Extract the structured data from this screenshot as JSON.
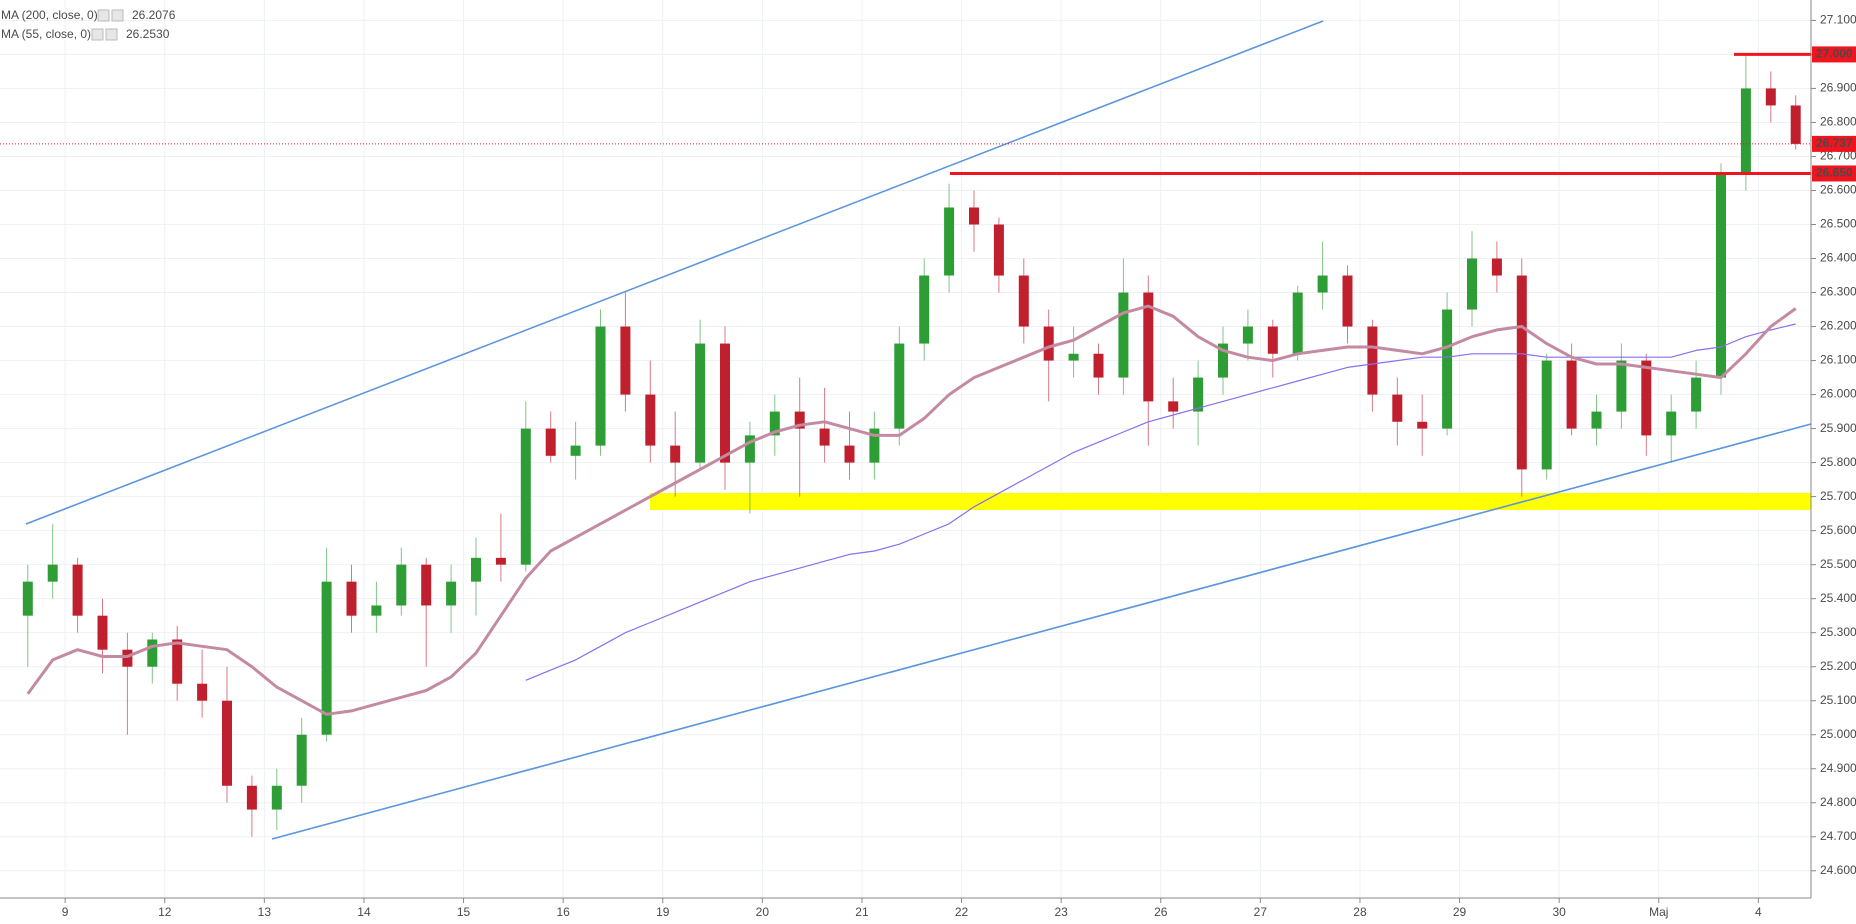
{
  "chart_data": {
    "type": "candlestick",
    "categories": [
      null,
      null,
      "9",
      null,
      null,
      null,
      "12",
      null,
      null,
      null,
      "13",
      null,
      null,
      null,
      "14",
      null,
      null,
      null,
      "15",
      null,
      null,
      null,
      "16",
      null,
      null,
      null,
      "19",
      null,
      null,
      null,
      "20",
      null,
      null,
      null,
      "21",
      null,
      null,
      null,
      "22",
      null,
      null,
      null,
      "23",
      null,
      null,
      null,
      "26",
      null,
      null,
      null,
      "27",
      null,
      null,
      null,
      "28",
      null,
      null,
      null,
      "29",
      null,
      null,
      null,
      "30",
      null,
      null,
      null,
      "Maj",
      null,
      null,
      null,
      "4",
      null
    ],
    "ohlc": [
      [
        25.35,
        25.5,
        25.2,
        25.45
      ],
      [
        25.45,
        25.62,
        25.4,
        25.5
      ],
      [
        25.5,
        25.52,
        25.3,
        25.35
      ],
      [
        25.35,
        25.4,
        25.18,
        25.25
      ],
      [
        25.25,
        25.3,
        25.0,
        25.2
      ],
      [
        25.2,
        25.3,
        25.15,
        25.28
      ],
      [
        25.28,
        25.32,
        25.1,
        25.15
      ],
      [
        25.15,
        25.25,
        25.05,
        25.1
      ],
      [
        25.1,
        25.2,
        24.8,
        24.85
      ],
      [
        24.85,
        24.88,
        24.7,
        24.78
      ],
      [
        24.78,
        24.9,
        24.72,
        24.85
      ],
      [
        24.85,
        25.05,
        24.8,
        25.0
      ],
      [
        25.0,
        25.55,
        24.98,
        25.45
      ],
      [
        25.45,
        25.5,
        25.3,
        25.35
      ],
      [
        25.35,
        25.45,
        25.3,
        25.38
      ],
      [
        25.38,
        25.55,
        25.35,
        25.5
      ],
      [
        25.5,
        25.52,
        25.2,
        25.38
      ],
      [
        25.38,
        25.5,
        25.3,
        25.45
      ],
      [
        25.45,
        25.58,
        25.35,
        25.52
      ],
      [
        25.52,
        25.65,
        25.45,
        25.5
      ],
      [
        25.5,
        25.98,
        25.48,
        25.9
      ],
      [
        25.9,
        25.95,
        25.8,
        25.82
      ],
      [
        25.82,
        25.92,
        25.75,
        25.85
      ],
      [
        25.85,
        26.25,
        25.82,
        26.2
      ],
      [
        26.2,
        26.3,
        25.95,
        26.0
      ],
      [
        26.0,
        26.1,
        25.8,
        25.85
      ],
      [
        25.85,
        25.95,
        25.7,
        25.8
      ],
      [
        25.8,
        26.22,
        25.78,
        26.15
      ],
      [
        26.15,
        26.2,
        25.72,
        25.8
      ],
      [
        25.8,
        25.92,
        25.65,
        25.88
      ],
      [
        25.88,
        26.0,
        25.82,
        25.95
      ],
      [
        25.95,
        26.05,
        25.7,
        25.9
      ],
      [
        25.9,
        26.02,
        25.8,
        25.85
      ],
      [
        25.85,
        25.95,
        25.75,
        25.8
      ],
      [
        25.8,
        25.95,
        25.75,
        25.9
      ],
      [
        25.9,
        26.2,
        25.85,
        26.15
      ],
      [
        26.15,
        26.4,
        26.1,
        26.35
      ],
      [
        26.35,
        26.62,
        26.3,
        26.55
      ],
      [
        26.55,
        26.6,
        26.42,
        26.5
      ],
      [
        26.5,
        26.52,
        26.3,
        26.35
      ],
      [
        26.35,
        26.4,
        26.15,
        26.2
      ],
      [
        26.2,
        26.25,
        25.98,
        26.1
      ],
      [
        26.1,
        26.2,
        26.05,
        26.12
      ],
      [
        26.12,
        26.15,
        26.0,
        26.05
      ],
      [
        26.05,
        26.4,
        26.0,
        26.3
      ],
      [
        26.3,
        26.35,
        25.85,
        25.98
      ],
      [
        25.98,
        26.05,
        25.9,
        25.95
      ],
      [
        25.95,
        26.1,
        25.85,
        26.05
      ],
      [
        26.05,
        26.2,
        26.0,
        26.15
      ],
      [
        26.15,
        26.25,
        26.1,
        26.2
      ],
      [
        26.2,
        26.22,
        26.05,
        26.12
      ],
      [
        26.12,
        26.32,
        26.1,
        26.3
      ],
      [
        26.3,
        26.45,
        26.25,
        26.35
      ],
      [
        26.35,
        26.38,
        26.15,
        26.2
      ],
      [
        26.2,
        26.22,
        25.95,
        26.0
      ],
      [
        26.0,
        26.05,
        25.85,
        25.92
      ],
      [
        25.92,
        26.0,
        25.82,
        25.9
      ],
      [
        25.9,
        26.3,
        25.88,
        26.25
      ],
      [
        26.25,
        26.48,
        26.2,
        26.4
      ],
      [
        26.4,
        26.45,
        26.3,
        26.35
      ],
      [
        26.35,
        26.4,
        25.7,
        25.78
      ],
      [
        25.78,
        26.12,
        25.75,
        26.1
      ],
      [
        26.1,
        26.15,
        25.88,
        25.9
      ],
      [
        25.9,
        26.0,
        25.85,
        25.95
      ],
      [
        25.95,
        26.15,
        25.9,
        26.1
      ],
      [
        26.1,
        26.12,
        25.82,
        25.88
      ],
      [
        25.88,
        26.0,
        25.8,
        25.95
      ],
      [
        25.95,
        26.1,
        25.9,
        26.05
      ],
      [
        26.05,
        26.68,
        26.0,
        26.65
      ],
      [
        26.65,
        27.0,
        26.6,
        26.9
      ],
      [
        26.9,
        26.95,
        26.8,
        26.85
      ],
      [
        26.85,
        26.88,
        26.72,
        26.737
      ]
    ],
    "up_color": "#2e9d36",
    "down_color": "#c0202e",
    "series": [
      {
        "name": "MA (200, close, 0)",
        "color": "#8a6ef0",
        "legend_value_label": "26.2076",
        "values": [
          null,
          null,
          null,
          null,
          null,
          null,
          null,
          null,
          null,
          null,
          null,
          null,
          null,
          null,
          null,
          null,
          null,
          null,
          null,
          null,
          25.16,
          25.19,
          25.22,
          25.26,
          25.3,
          25.33,
          25.36,
          25.39,
          25.42,
          25.45,
          25.47,
          25.49,
          25.51,
          25.53,
          25.54,
          25.56,
          25.59,
          25.62,
          25.67,
          25.71,
          25.75,
          25.79,
          25.83,
          25.86,
          25.89,
          25.92,
          25.94,
          25.96,
          25.98,
          26.0,
          26.02,
          26.04,
          26.06,
          26.08,
          26.09,
          26.1,
          26.11,
          26.11,
          26.12,
          26.12,
          26.12,
          26.11,
          26.11,
          26.11,
          26.11,
          26.11,
          26.11,
          26.13,
          26.14,
          26.17,
          26.19,
          26.2076
        ]
      },
      {
        "name": "MA (55, close, 0)",
        "color": "#c48aa2",
        "legend_value_label": "26.2530",
        "values": [
          25.12,
          25.22,
          25.25,
          25.23,
          25.23,
          25.26,
          25.27,
          25.26,
          25.25,
          25.2,
          25.14,
          25.1,
          25.06,
          25.07,
          25.09,
          25.11,
          25.13,
          25.17,
          25.24,
          25.35,
          25.46,
          25.54,
          25.58,
          25.62,
          25.66,
          25.7,
          25.74,
          25.78,
          25.82,
          25.86,
          25.89,
          25.91,
          25.92,
          25.9,
          25.88,
          25.88,
          25.93,
          26.0,
          26.05,
          26.08,
          26.11,
          26.14,
          26.16,
          26.2,
          26.24,
          26.26,
          26.23,
          26.17,
          26.13,
          26.11,
          26.1,
          26.12,
          26.13,
          26.14,
          26.14,
          26.13,
          26.12,
          26.14,
          26.17,
          26.19,
          26.2,
          26.15,
          26.11,
          26.09,
          26.09,
          26.08,
          26.07,
          26.06,
          26.05,
          26.12,
          26.2,
          26.253
        ]
      }
    ],
    "levels": [
      {
        "value": 27.0,
        "label": "27.000",
        "color": "#f0141e"
      },
      {
        "value": 26.65,
        "label": "26.650",
        "color": "#f0141e"
      }
    ],
    "last_price": {
      "value": 26.737,
      "label": "26.737",
      "color": "#f0141e"
    },
    "ylim": [
      24.52,
      27.16
    ],
    "yticks": [
      {
        "value": 27.1,
        "label": "27.100"
      },
      {
        "value": 27.0,
        "label": "27.000"
      },
      {
        "value": 26.9,
        "label": "26.900"
      },
      {
        "value": 26.8,
        "label": "26.800"
      },
      {
        "value": 26.7,
        "label": "26.700"
      },
      {
        "value": 26.6,
        "label": "26.600"
      },
      {
        "value": 26.5,
        "label": "26.500"
      },
      {
        "value": 26.4,
        "label": "26.400"
      },
      {
        "value": 26.3,
        "label": "26.300"
      },
      {
        "value": 26.2,
        "label": "26.200"
      },
      {
        "value": 26.1,
        "label": "26.100"
      },
      {
        "value": 26.0,
        "label": "26.000"
      },
      {
        "value": 25.9,
        "label": "25.900"
      },
      {
        "value": 25.8,
        "label": "25.800"
      },
      {
        "value": 25.7,
        "label": "25.700"
      },
      {
        "value": 25.6,
        "label": "25.600"
      },
      {
        "value": 25.5,
        "label": "25.500"
      },
      {
        "value": 25.4,
        "label": "25.400"
      },
      {
        "value": 25.3,
        "label": "25.300"
      },
      {
        "value": 25.2,
        "label": "25.200"
      },
      {
        "value": 25.1,
        "label": "25.100"
      },
      {
        "value": 25.0,
        "label": "25.000"
      },
      {
        "value": 24.9,
        "label": "24.900"
      },
      {
        "value": 24.8,
        "label": "24.800"
      },
      {
        "value": 24.7,
        "label": "24.700"
      },
      {
        "value": 24.6,
        "label": "24.600"
      }
    ],
    "grid": true
  }
}
